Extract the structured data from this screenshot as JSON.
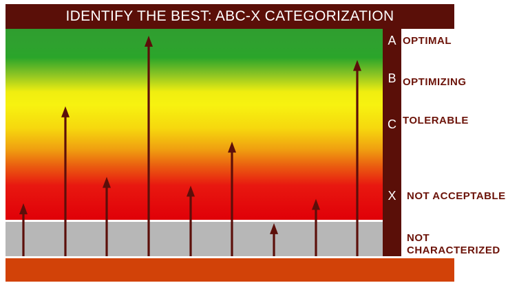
{
  "header": {
    "title": "IDENTIFY THE BEST: ABC-X CATEGORIZATION"
  },
  "scale": {
    "categories": [
      {
        "letter": "A",
        "label": "OPTIMAL"
      },
      {
        "letter": "B",
        "label": "OPTIMIZING"
      },
      {
        "letter": "C",
        "label": "TOLERABLE"
      },
      {
        "letter": "X",
        "label": "NOT ACCEPTABLE"
      }
    ],
    "not_characterized": {
      "line1": "NOT",
      "line2": "CHARACTERIZED"
    }
  },
  "colors": {
    "dark_maroon": "#5a0f08",
    "label_maroon": "#6b1208",
    "arrow": "#5c0f0a",
    "green": "#2fa12f",
    "yellow": "#f7f210",
    "red": "#e00008",
    "gray": "#b7b7b7",
    "orange_footer": "#d24208"
  },
  "arrow_levels": [
    0.24,
    0.68,
    0.36,
    1.0,
    0.32,
    0.52,
    0.15,
    0.26,
    0.89
  ]
}
